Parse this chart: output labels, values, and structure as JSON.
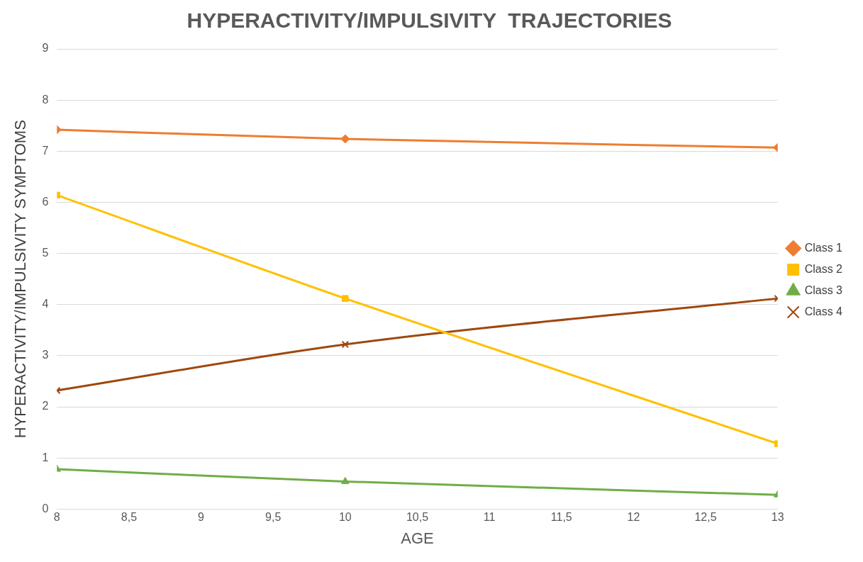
{
  "chart_data": {
    "type": "line",
    "title": "HYPERACTIVITY/IMPULSIVITY  TRAJECTORIES",
    "xlabel": "AGE",
    "ylabel": "HYPERACTIVITY/IMPULSIVITY SYMPTOMS",
    "x": [
      8,
      10,
      13
    ],
    "series": [
      {
        "name": "Class 1",
        "color": "#ed7d31",
        "marker": "diamond",
        "values": [
          7.42,
          7.24,
          7.07
        ]
      },
      {
        "name": "Class 2",
        "color": "#ffc000",
        "marker": "square",
        "values": [
          6.14,
          4.12,
          1.28
        ]
      },
      {
        "name": "Class 3",
        "color": "#70ad47",
        "marker": "triangle",
        "values": [
          0.78,
          0.54,
          0.28
        ]
      },
      {
        "name": "Class 4",
        "color": "#9e480e",
        "marker": "cross",
        "values": [
          2.32,
          3.22,
          4.12
        ]
      }
    ],
    "xlim": [
      8,
      13
    ],
    "xticks": [
      8,
      {
        "value": 8.5,
        "label": "8,5"
      },
      9,
      {
        "value": 9.5,
        "label": "9,5"
      },
      10,
      {
        "value": 10.5,
        "label": "10,5"
      },
      11,
      {
        "value": 11.5,
        "label": "11,5"
      },
      12,
      {
        "value": 12.5,
        "label": "12,5"
      },
      13
    ],
    "ylim": [
      0,
      9
    ],
    "yticks": [
      0,
      1,
      2,
      3,
      4,
      5,
      6,
      7,
      8,
      9
    ],
    "grid": "y",
    "legend": "right",
    "line_style": "solid"
  }
}
